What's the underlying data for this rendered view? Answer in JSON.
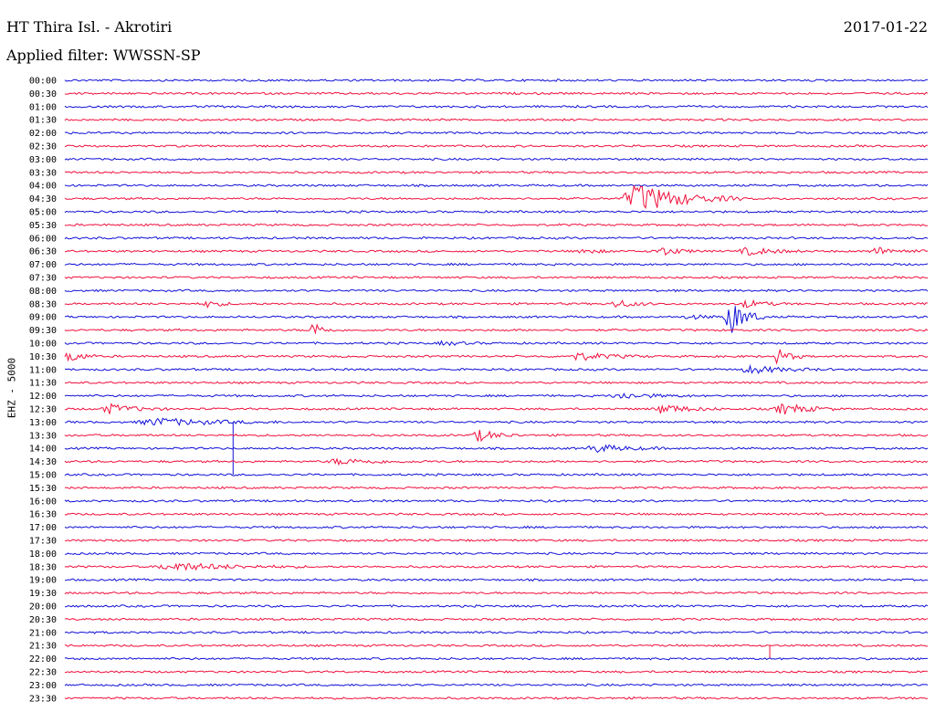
{
  "header": {
    "station": "HT Thira Isl. - Akrotiri",
    "date": "2017-01-22",
    "filter": "Applied filter: WWSSN-SP"
  },
  "chart_data": {
    "type": "line",
    "title": "HT Thira Isl. - Akrotiri",
    "ylabel": "EHZ - 5000",
    "row_labels": [
      "00:00",
      "00:30",
      "01:00",
      "01:30",
      "02:00",
      "02:30",
      "03:00",
      "03:30",
      "04:00",
      "04:30",
      "05:00",
      "05:30",
      "06:00",
      "06:30",
      "07:00",
      "07:30",
      "08:00",
      "08:30",
      "09:00",
      "09:30",
      "10:00",
      "10:30",
      "11:00",
      "11:30",
      "12:00",
      "12:30",
      "13:00",
      "13:30",
      "14:00",
      "14:30",
      "15:00",
      "15:30",
      "16:00",
      "16:30",
      "17:00",
      "17:30",
      "18:00",
      "18:30",
      "19:00",
      "19:30",
      "20:00",
      "20:30",
      "21:00",
      "21:30",
      "22:00",
      "22:30",
      "23:00",
      "23:30"
    ],
    "colors": {
      "even": "#1010d8",
      "odd": "#f0103c"
    },
    "trace_minutes": 30,
    "events": [
      {
        "row": "04:30",
        "start": 0.643,
        "duration": 0.14,
        "amplitude": 16
      },
      {
        "row": "06:30",
        "start": 0.59,
        "duration": 0.05,
        "amplitude": 3
      },
      {
        "row": "06:30",
        "start": 0.68,
        "duration": 0.06,
        "amplitude": 5
      },
      {
        "row": "06:30",
        "start": 0.78,
        "duration": 0.08,
        "amplitude": 4
      },
      {
        "row": "06:30",
        "start": 0.93,
        "duration": 0.07,
        "amplitude": 4
      },
      {
        "row": "08:30",
        "start": 0.16,
        "duration": 0.04,
        "amplitude": 4
      },
      {
        "row": "08:30",
        "start": 0.63,
        "duration": 0.06,
        "amplitude": 4
      },
      {
        "row": "08:30",
        "start": 0.78,
        "duration": 0.06,
        "amplitude": 4
      },
      {
        "row": "09:00",
        "start": 0.715,
        "duration": 0.06,
        "amplitude": 2
      },
      {
        "row": "09:00",
        "start": 0.763,
        "duration": 0.05,
        "amplitude": 20
      },
      {
        "row": "09:30",
        "start": 0.283,
        "duration": 0.03,
        "amplitude": 10
      },
      {
        "row": "10:00",
        "start": 0.43,
        "duration": 0.06,
        "amplitude": 2
      },
      {
        "row": "10:30",
        "start": 0.0,
        "duration": 0.04,
        "amplitude": 7
      },
      {
        "row": "10:30",
        "start": 0.58,
        "duration": 0.1,
        "amplitude": 4
      },
      {
        "row": "10:30",
        "start": 0.82,
        "duration": 0.04,
        "amplitude": 8
      },
      {
        "row": "11:00",
        "start": 0.78,
        "duration": 0.1,
        "amplitude": 4
      },
      {
        "row": "12:00",
        "start": 0.63,
        "duration": 0.1,
        "amplitude": 3
      },
      {
        "row": "12:30",
        "start": 0.04,
        "duration": 0.08,
        "amplitude": 5
      },
      {
        "row": "12:30",
        "start": 0.68,
        "duration": 0.08,
        "amplitude": 5
      },
      {
        "row": "12:30",
        "start": 0.82,
        "duration": 0.08,
        "amplitude": 6
      },
      {
        "row": "13:00",
        "start": 0.08,
        "duration": 0.18,
        "amplitude": 4
      },
      {
        "row": "13:30",
        "start": 0.47,
        "duration": 0.06,
        "amplitude": 6
      },
      {
        "row": "14:00",
        "start": 0.6,
        "duration": 0.1,
        "amplitude": 4
      },
      {
        "row": "14:30",
        "start": 0.3,
        "duration": 0.12,
        "amplitude": 3
      },
      {
        "row": "18:30",
        "start": 0.1,
        "duration": 0.18,
        "amplitude": 4
      }
    ],
    "spikes": [
      {
        "row": "13:00",
        "position": 0.195,
        "extent_rows": 4
      },
      {
        "row": "21:30",
        "position": 0.817,
        "extent_rows": 1
      }
    ]
  }
}
